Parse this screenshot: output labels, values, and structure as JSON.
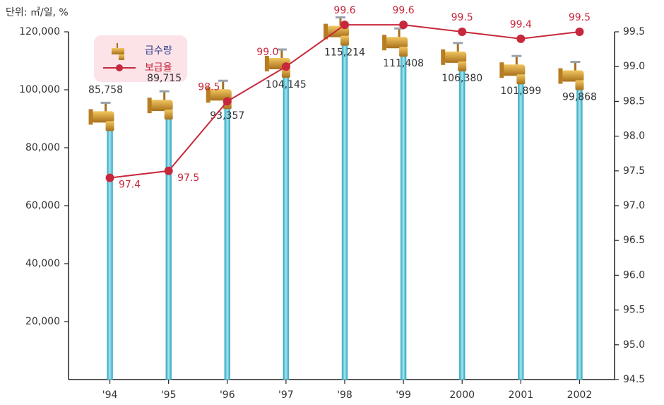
{
  "chart_data": {
    "type": "bar-line",
    "unit_label": "단위: ㎥/일, %",
    "categories": [
      "'94",
      "'95",
      "'96",
      "'97",
      "'98",
      "'99",
      "2000",
      "2001",
      "2002"
    ],
    "series": [
      {
        "name": "급수량",
        "type": "bar",
        "axis": "y",
        "color": "#4fc0d4",
        "values": [
          85758,
          89715,
          93357,
          104145,
          115214,
          111408,
          106380,
          101899,
          99868
        ],
        "value_labels": [
          "85,758",
          "89,715",
          "93,357",
          "104,145",
          "115,214",
          "111,408",
          "106,380",
          "101,899",
          "99,868"
        ]
      },
      {
        "name": "보급율",
        "type": "line",
        "axis": "y2",
        "color": "#c8283c",
        "values": [
          97.4,
          97.5,
          98.5,
          99.0,
          99.6,
          99.6,
          99.5,
          99.4,
          99.5
        ],
        "value_labels": [
          "97.4",
          "97.5",
          "98.5",
          "99.0",
          "99.6",
          "99.6",
          "99.5",
          "99.4",
          "99.5"
        ]
      }
    ],
    "ylim": [
      0,
      120000
    ],
    "yticks": [
      {
        "value": 20000,
        "label": "20,000"
      },
      {
        "value": 40000,
        "label": "40,000"
      },
      {
        "value": 60000,
        "label": "60,000"
      },
      {
        "value": 80000,
        "label": "80,000"
      },
      {
        "value": 100000,
        "label": "100,000"
      },
      {
        "value": 120000,
        "label": "120,000"
      }
    ],
    "y2lim": [
      94.5,
      99.5
    ],
    "y2ticks": [
      94.5,
      {
        "value": 95,
        "label": "95.0"
      },
      95.5,
      {
        "value": 96,
        "label": "96.0"
      },
      96.5,
      {
        "value": 97,
        "label": "97.0"
      },
      97.5,
      {
        "value": 98,
        "label": "98.0"
      },
      98.5,
      {
        "value": 99,
        "label": "99.0"
      },
      99.5
    ]
  }
}
